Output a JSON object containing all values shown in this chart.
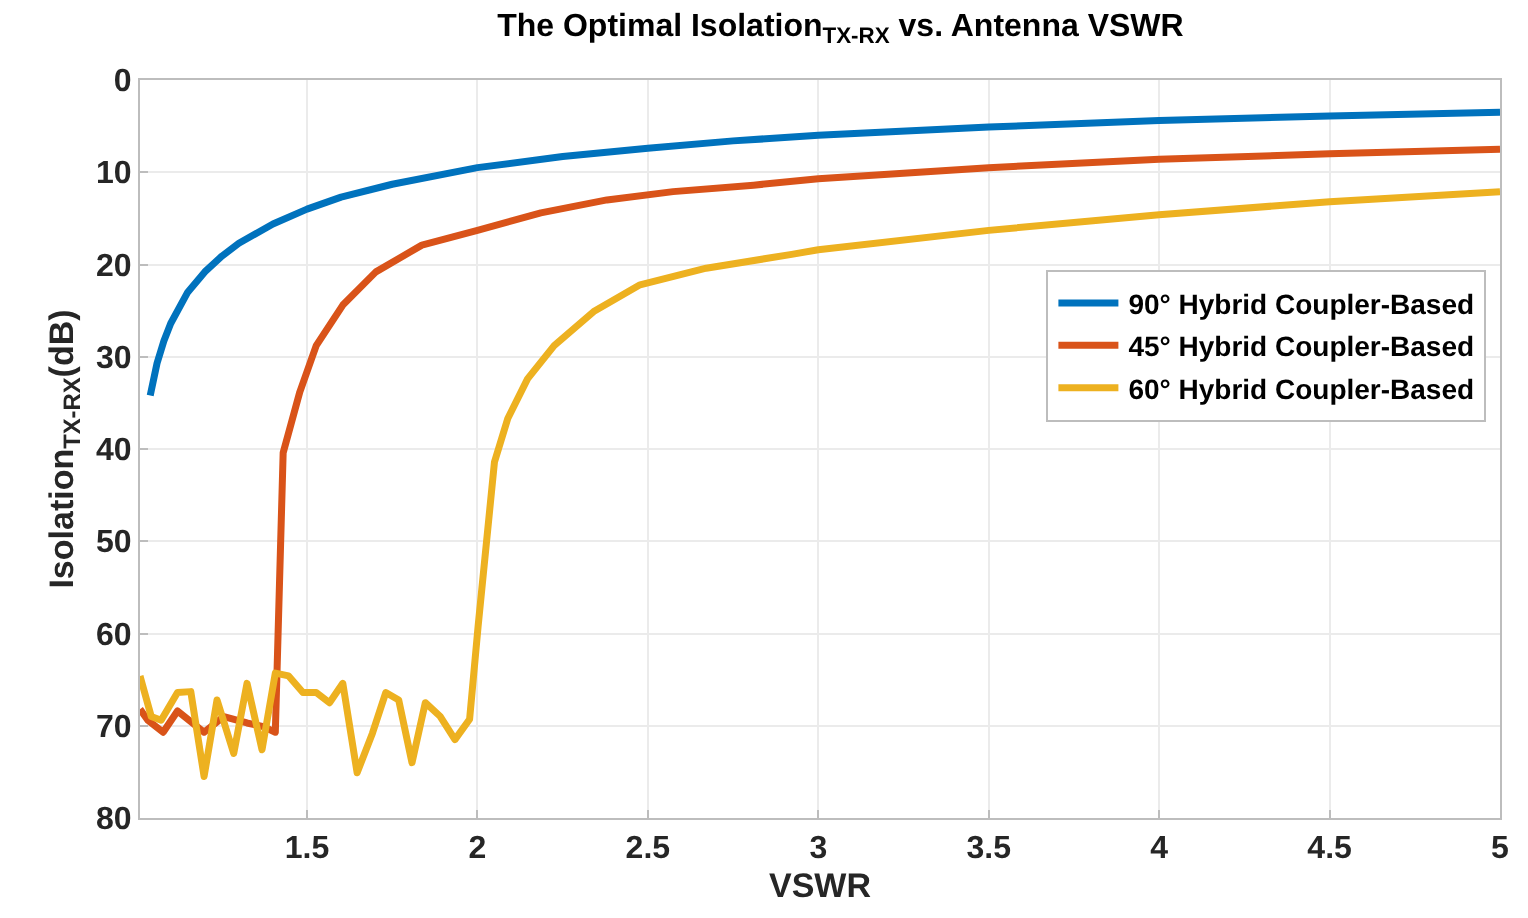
{
  "chart_data": {
    "type": "line",
    "title": "The Optimal Isolation$_{TX-RX}$ vs. Antenna VSWR",
    "xlabel": "VSWR",
    "ylabel": "Isolation$_{TX-RX}$(dB)",
    "xlim": [
      1.01,
      5
    ],
    "xticks": [
      1.5,
      2,
      2.5,
      3,
      3.5,
      4,
      4.5,
      5
    ],
    "ylim": [
      80,
      0
    ],
    "yticks": [
      0,
      10,
      20,
      30,
      40,
      50,
      60,
      70,
      80
    ],
    "grid": true,
    "legend": "right",
    "marker": "none",
    "line_style": "solid",
    "series": [
      {
        "name": "90° Hybrid Coupler-Based",
        "color": "#0072bd",
        "x": [
          1.04,
          1.06,
          1.08,
          1.1,
          1.15,
          1.2,
          1.25,
          1.3,
          1.4,
          1.5,
          1.6,
          1.75,
          2,
          2.25,
          2.5,
          2.75,
          3,
          3.5,
          4,
          4.5,
          5
        ],
        "values": [
          34.2,
          30.7,
          28.3,
          26.4,
          23.0,
          20.8,
          19.1,
          17.7,
          15.6,
          14.0,
          12.7,
          11.3,
          9.5,
          8.3,
          7.4,
          6.6,
          6.0,
          5.1,
          4.4,
          3.9,
          3.5
        ]
      },
      {
        "name": "45° Hybrid Coupler-Based",
        "color": "#d95319",
        "x": [
          1.01,
          1.033,
          1.078,
          1.12,
          1.198,
          1.256,
          1.324,
          1.372,
          1.407,
          1.43,
          1.479,
          1.527,
          1.605,
          1.702,
          1.837,
          2.0,
          2.186,
          2.38,
          2.574,
          2.81,
          3,
          3.5,
          4,
          4.5,
          5
        ],
        "values": [
          68.2,
          69.4,
          70.7,
          68.4,
          70.7,
          69.0,
          69.7,
          70.1,
          70.7,
          40.4,
          33.8,
          28.8,
          24.4,
          20.8,
          17.9,
          16.3,
          14.4,
          13.0,
          12.1,
          11.4,
          10.7,
          9.5,
          8.6,
          8.0,
          7.5
        ]
      },
      {
        "name": "60° Hybrid Coupler-Based",
        "color": "#edb120",
        "x": [
          1.01,
          1.043,
          1.072,
          1.12,
          1.159,
          1.198,
          1.236,
          1.285,
          1.324,
          1.368,
          1.407,
          1.446,
          1.488,
          1.527,
          1.566,
          1.605,
          1.647,
          1.692,
          1.731,
          1.769,
          1.808,
          1.847,
          1.891,
          1.934,
          1.977,
          2.002,
          2.05,
          2.089,
          2.147,
          2.225,
          2.341,
          2.477,
          2.671,
          2.922,
          3,
          3.5,
          4,
          4.5,
          5
        ],
        "values": [
          64.6,
          69.0,
          69.4,
          66.4,
          66.3,
          75.5,
          67.2,
          73.0,
          65.4,
          72.6,
          64.3,
          64.6,
          66.4,
          66.4,
          67.5,
          65.4,
          75.1,
          70.8,
          66.4,
          67.2,
          74.0,
          67.5,
          69.0,
          71.5,
          69.3,
          59.2,
          41.4,
          36.7,
          32.4,
          28.8,
          25.1,
          22.2,
          20.4,
          18.9,
          18.4,
          16.3,
          14.6,
          13.2,
          12.1
        ]
      }
    ]
  }
}
